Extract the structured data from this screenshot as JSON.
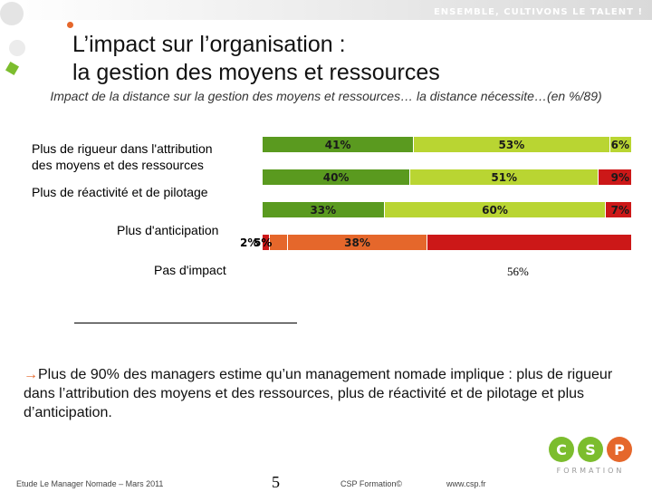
{
  "header": {
    "tagline": "ENSEMBLE, CULTIVONS LE TALENT !",
    "title_line1": "L’impact sur l’organisation :",
    "title_line2": "la gestion des moyens et ressources",
    "subtitle": "Impact de la distance sur la gestion des moyens et ressources… la distance nécessite…(en %/89)"
  },
  "colors": {
    "dark_green": "#5a9a1f",
    "light_green": "#b9d532",
    "red": "#cc1818",
    "orange": "#e5672b",
    "accent": "#e5672b"
  },
  "chart_data": {
    "type": "bar",
    "orientation": "horizontal-stacked",
    "title": "Impact de la distance sur la gestion des moyens et ressources… la distance nécessite…(en %/89)",
    "categories": [
      "Plus de rigueur dans l'attribution des moyens et des ressources",
      "Plus de réactivité et de pilotage",
      "Plus d'anticipation",
      "Pas d'impact"
    ],
    "category_label_lines": [
      [
        "Plus de rigueur dans l'attribution",
        "des moyens et des ressources"
      ],
      [
        "Plus de réactivité et de pilotage"
      ],
      [
        "Plus d'anticipation"
      ],
      [
        "Pas d'impact"
      ]
    ],
    "rows": [
      {
        "segments": [
          {
            "value": 41,
            "label": "41%",
            "color": "#5a9a1f"
          },
          {
            "value": 53,
            "label": "53%",
            "color": "#b9d532"
          },
          {
            "value": 6,
            "label": "6%",
            "color": "#b9d532"
          }
        ]
      },
      {
        "segments": [
          {
            "value": 40,
            "label": "40%",
            "color": "#5a9a1f"
          },
          {
            "value": 51,
            "label": "51%",
            "color": "#b9d532"
          },
          {
            "value": 9,
            "label": "9%",
            "color": "#cc1818"
          }
        ]
      },
      {
        "segments": [
          {
            "value": 33,
            "label": "33%",
            "color": "#5a9a1f"
          },
          {
            "value": 60,
            "label": "60%",
            "color": "#b9d532"
          },
          {
            "value": 7,
            "label": "7%",
            "color": "#cc1818"
          }
        ]
      },
      {
        "segments": [
          {
            "value": 2,
            "label": "2%",
            "color": "#cc1818"
          },
          {
            "value": 5,
            "label": "5%",
            "color": "#e5672b"
          },
          {
            "value": 38,
            "label": "38%",
            "color": "#e5672b"
          },
          {
            "value": 56,
            "label": "56%",
            "color": "#cc1818"
          }
        ]
      }
    ],
    "pas_impact_value_label": "56%",
    "xlim": [
      0,
      100
    ]
  },
  "body": {
    "arrow": "→",
    "text": "Plus de 90% des managers estime qu’un management nomade implique : plus de rigueur dans l’attribution des moyens et des ressources, plus de réactivité et de pilotage et plus d’anticipation."
  },
  "footer": {
    "source": "Etude Le Manager Nomade – Mars 2011",
    "page": "5",
    "copyright": "CSP Formation©",
    "website": "www.csp.fr"
  },
  "logo": {
    "letters": [
      "C",
      "S",
      "P"
    ],
    "subtitle": "FORMATION"
  }
}
